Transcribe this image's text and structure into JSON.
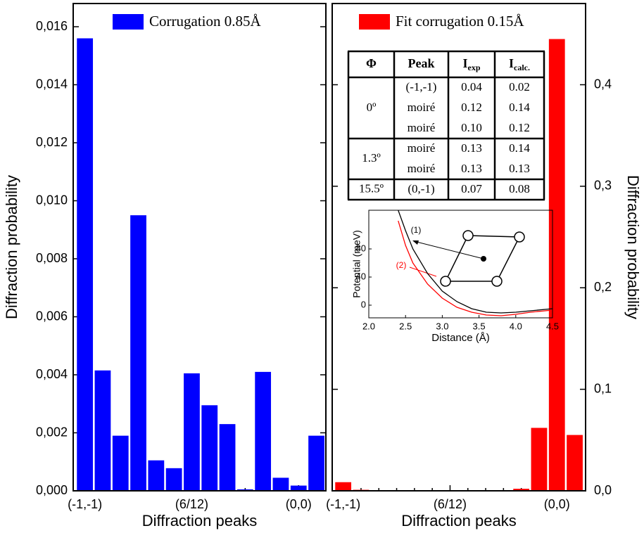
{
  "chart_data": [
    {
      "type": "bar",
      "name": "left",
      "y_label": "Diffraction probability",
      "x_label": "Diffraction peaks",
      "categories": [
        "(-1,-1)",
        null,
        null,
        null,
        null,
        null,
        "(6/12)",
        null,
        null,
        null,
        null,
        null,
        "(0,0)",
        null
      ],
      "series": [
        {
          "name": "Corrugation 0.85Å",
          "color": "#0000ff",
          "values": [
            0.0156,
            0.00415,
            0.0019,
            0.0095,
            0.00105,
            0.00078,
            0.00405,
            0.00295,
            0.0023,
            5e-05,
            0.0041,
            0.00045,
            0.00018,
            0.0019
          ]
        }
      ],
      "ylim": [
        0,
        0.0168
      ],
      "yticks": [
        {
          "value": 0,
          "label": "0,000"
        },
        {
          "value": 0.002,
          "label": "0,002"
        },
        {
          "value": 0.004,
          "label": "0,004"
        },
        {
          "value": 0.006,
          "label": "0,006"
        },
        {
          "value": 0.008,
          "label": "0,008"
        },
        {
          "value": 0.01,
          "label": "0,010"
        },
        {
          "value": 0.012,
          "label": "0,012"
        },
        {
          "value": 0.014,
          "label": "0,014"
        },
        {
          "value": 0.016,
          "label": "0,016"
        }
      ]
    },
    {
      "type": "bar",
      "name": "right",
      "y_label": "Diffraction probability",
      "x_label": "Diffraction peaks",
      "categories": [
        "(-1,-1)",
        null,
        null,
        null,
        null,
        null,
        "(6/12)",
        null,
        null,
        null,
        null,
        null,
        "(0,0)",
        null
      ],
      "series": [
        {
          "name": "Fit corrugation 0.15Å",
          "color": "#ff0000",
          "values": [
            0.0085,
            0.001,
            0,
            0,
            0,
            0,
            0,
            0,
            0,
            0,
            0.002,
            0.062,
            0.445,
            0.055
          ]
        }
      ],
      "ylim": [
        0,
        0.48
      ],
      "yticks": [
        {
          "value": 0,
          "label": "0,0"
        },
        {
          "value": 0.1,
          "label": "0,1"
        },
        {
          "value": 0.2,
          "label": "0,2"
        },
        {
          "value": 0.3,
          "label": "0,3"
        },
        {
          "value": 0.4,
          "label": "0,4"
        }
      ]
    },
    {
      "type": "line",
      "name": "inset",
      "y_label": "Potential (meV)",
      "x_label": "Distance (Å)",
      "x": [
        2.4,
        2.5,
        2.6,
        2.8,
        3.0,
        3.2,
        3.4,
        3.6,
        3.8,
        4.0,
        4.2,
        4.5
      ],
      "series": [
        {
          "name": "(1)",
          "color": "#000000",
          "values": [
            135,
            106,
            80,
            45,
            20,
            5,
            -5,
            -10,
            -11,
            -10,
            -8,
            -5
          ]
        },
        {
          "name": "(2)",
          "color": "#ff0000",
          "values": [
            120,
            85,
            60,
            30,
            10,
            -3,
            -10,
            -14,
            -15,
            -13,
            -10,
            -7
          ]
        }
      ],
      "xlim": [
        2.0,
        4.5
      ],
      "xticks": [
        {
          "value": 2,
          "label": "2.0"
        },
        {
          "value": 2.5,
          "label": "2.5"
        },
        {
          "value": 3,
          "label": "3.0"
        },
        {
          "value": 3.5,
          "label": "3.5"
        },
        {
          "value": 4,
          "label": "4.0"
        },
        {
          "value": 4.5,
          "label": "4.5"
        }
      ],
      "ylim": [
        -18,
        135
      ],
      "yticks": [
        0,
        40,
        80
      ]
    }
  ],
  "table": {
    "header": [
      {
        "text": "Φ"
      },
      {
        "text": "Peak"
      },
      {
        "text": "I",
        "sub": "exp"
      },
      {
        "text": "I",
        "sub": "calc."
      }
    ],
    "groups": [
      {
        "phi": "0º",
        "rows": [
          [
            "(-1,-1)",
            "0.04",
            "0.02"
          ],
          [
            "moiré",
            "0.12",
            "0.14"
          ],
          [
            "moiré",
            "0.10",
            "0.12"
          ]
        ]
      },
      {
        "phi": "1.3º",
        "rows": [
          [
            "moiré",
            "0.13",
            "0.14"
          ],
          [
            "moiré",
            "0.13",
            "0.13"
          ]
        ]
      },
      {
        "phi": "15.5º",
        "rows": [
          [
            "(0,-1)",
            "0.07",
            "0.08"
          ]
        ]
      }
    ]
  }
}
